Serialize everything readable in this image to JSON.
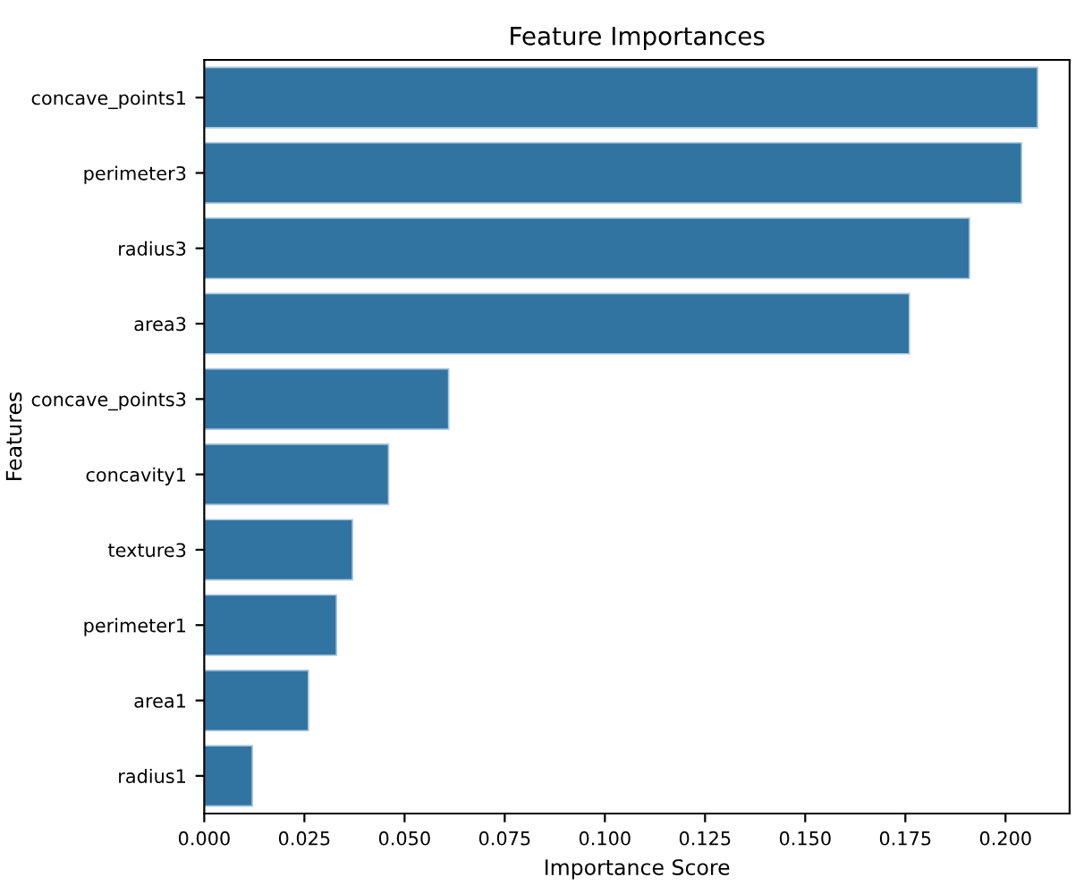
{
  "chart_data": {
    "type": "bar",
    "orientation": "horizontal",
    "title": "Feature Importances",
    "xlabel": "Importance Score",
    "ylabel": "Features",
    "categories": [
      "concave_points1",
      "perimeter3",
      "radius3",
      "area3",
      "concave_points3",
      "concavity1",
      "texture3",
      "perimeter1",
      "area1",
      "radius1"
    ],
    "values": [
      0.208,
      0.204,
      0.191,
      0.176,
      0.061,
      0.046,
      0.037,
      0.033,
      0.026,
      0.012
    ],
    "color": "#3274a1",
    "xlim": [
      0,
      0.216
    ],
    "xticks": [
      {
        "value": 0,
        "label": "0.000"
      },
      {
        "value": 0.025,
        "label": "0.025"
      },
      {
        "value": 0.05,
        "label": "0.050"
      },
      {
        "value": 0.075,
        "label": "0.075"
      },
      {
        "value": 0.1,
        "label": "0.100"
      },
      {
        "value": 0.125,
        "label": "0.125"
      },
      {
        "value": 0.15,
        "label": "0.150"
      },
      {
        "value": 0.175,
        "label": "0.175"
      },
      {
        "value": 0.2,
        "label": "0.200"
      }
    ],
    "grid": false
  }
}
